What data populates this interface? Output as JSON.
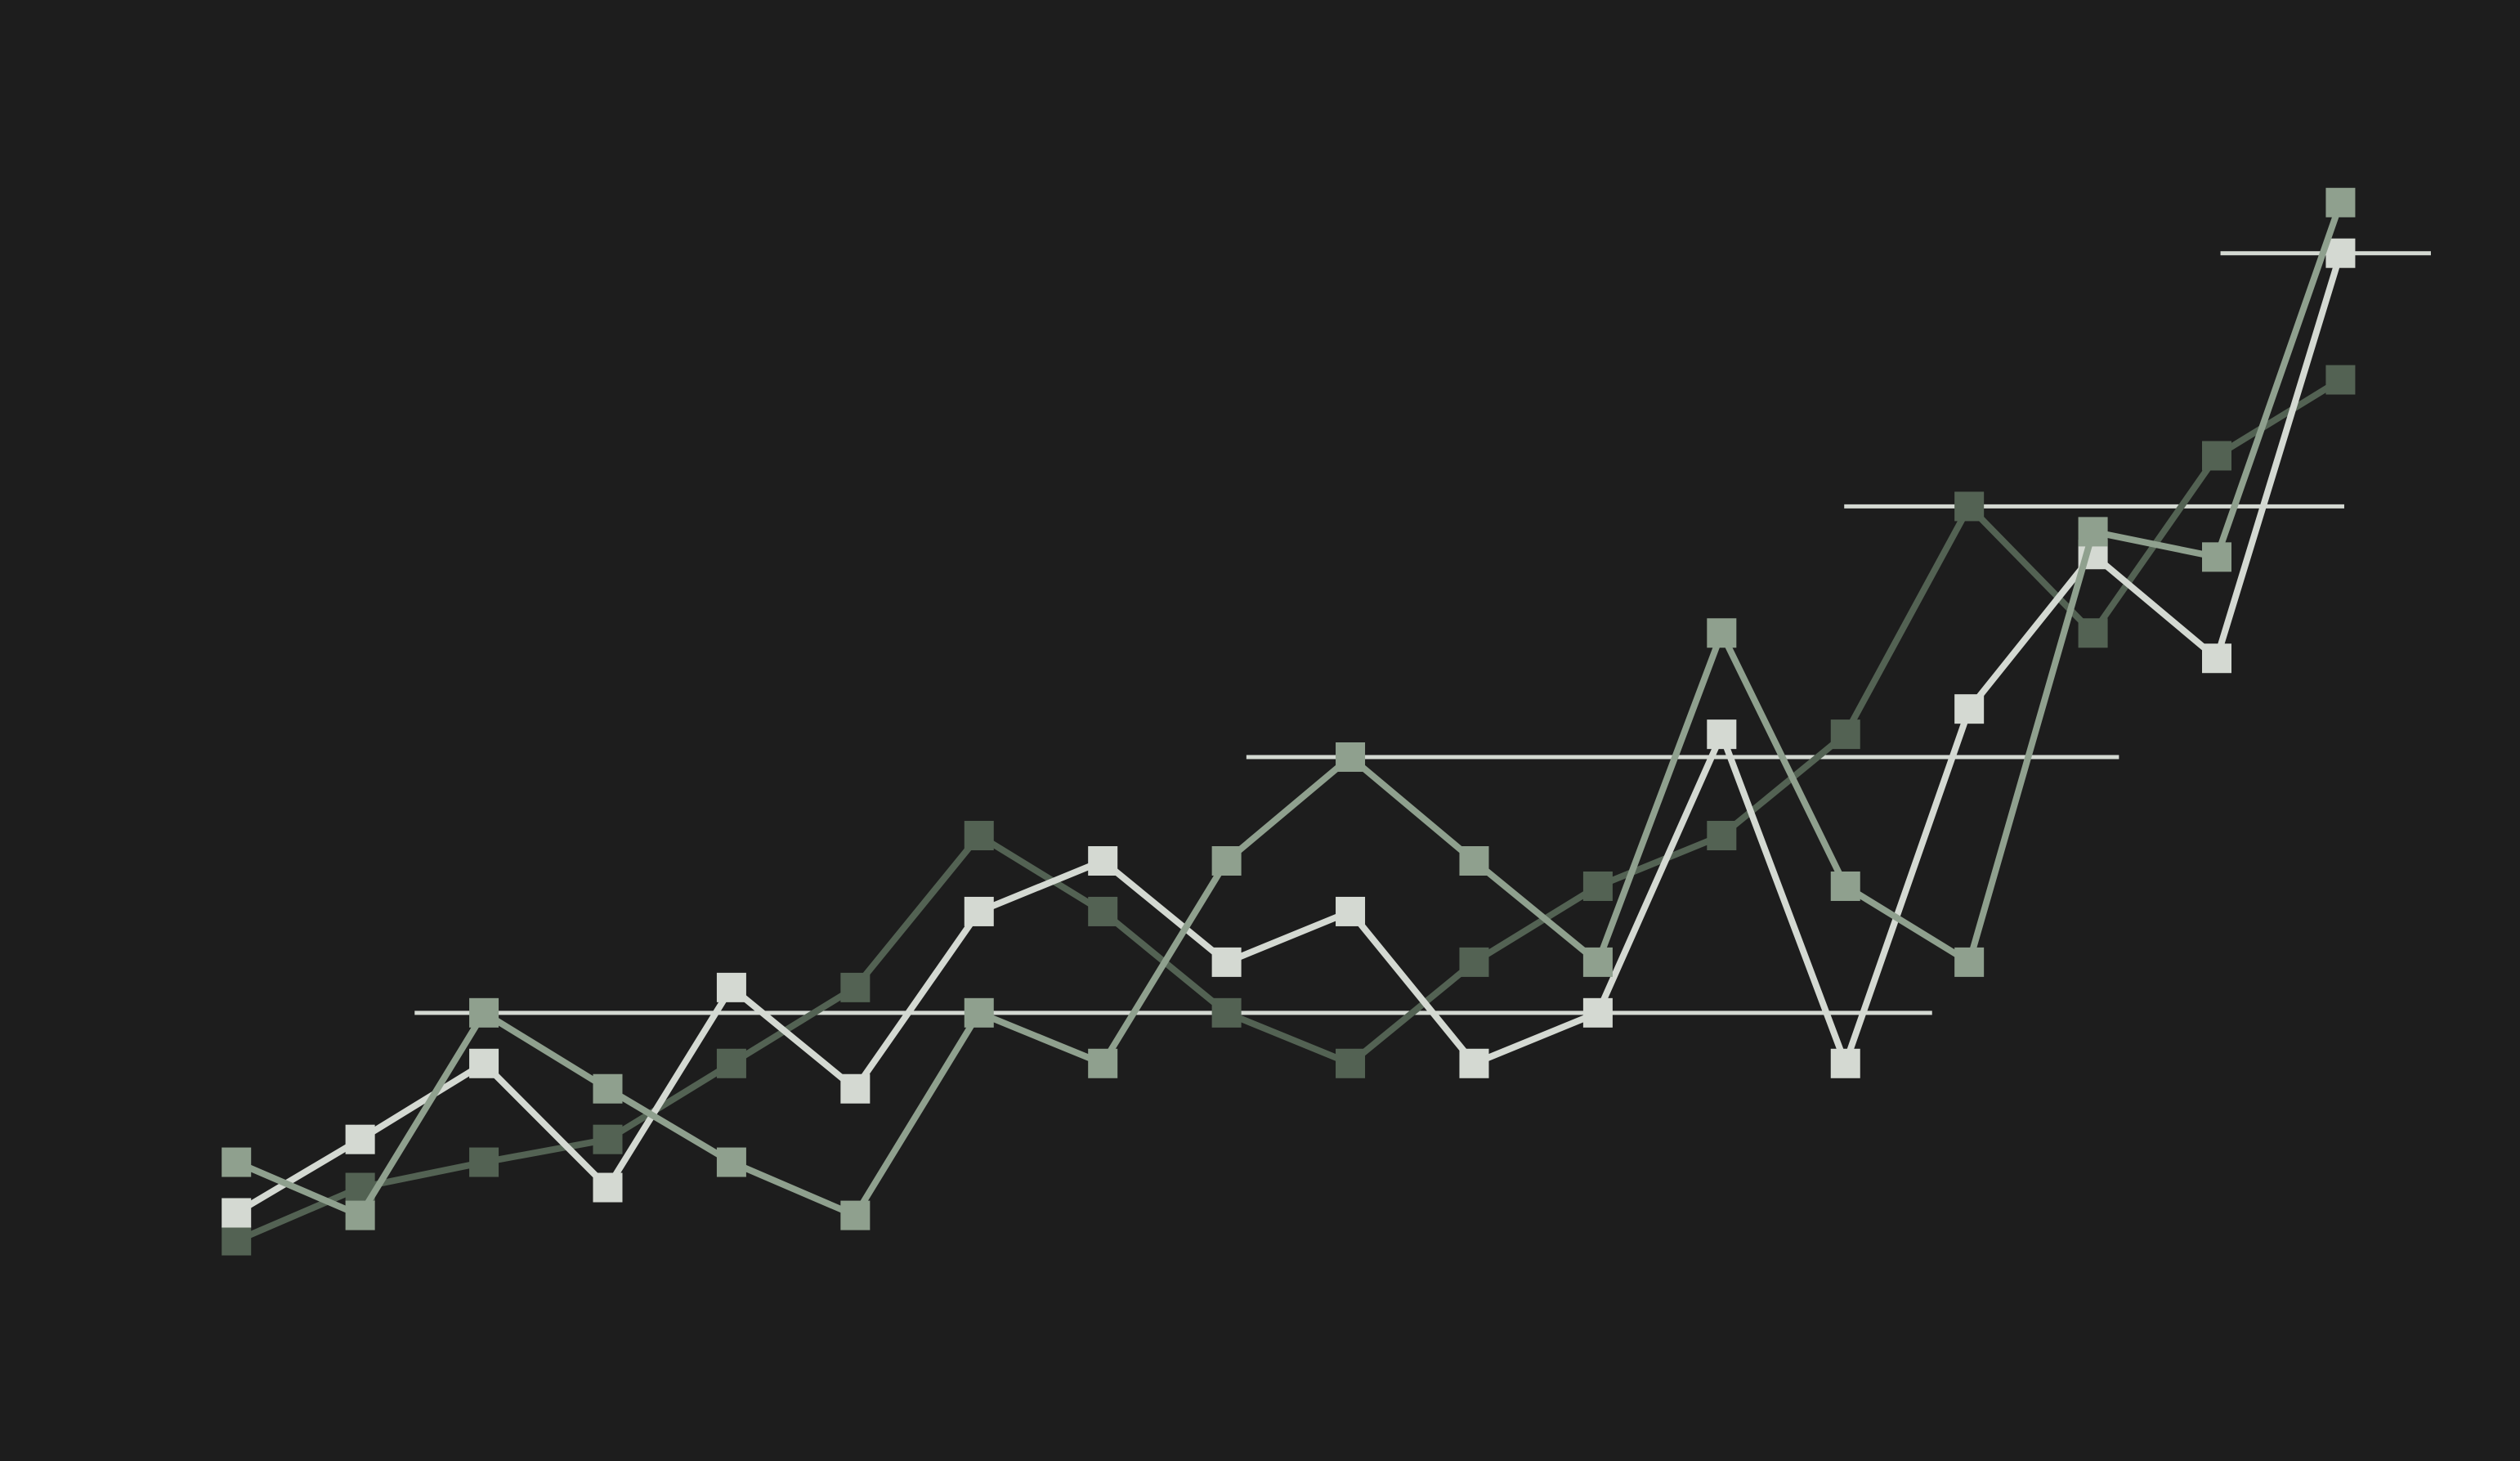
{
  "chart_data": {
    "type": "line",
    "x": [
      0,
      1,
      2,
      3,
      4,
      5,
      6,
      7,
      8,
      9,
      10,
      11,
      12,
      13,
      14,
      15,
      16,
      17
    ],
    "xlim": [
      -1.91,
      18.45
    ],
    "ylim": [
      -0.77,
      5.0
    ],
    "marker": "square",
    "series": [
      {
        "color": "#536253",
        "values": [
          0.1,
          0.31,
          0.41,
          0.5,
          0.8,
          1.1,
          1.7,
          1.4,
          1.0,
          0.8,
          1.2,
          1.5,
          1.7,
          2.1,
          3.0,
          2.5,
          3.2,
          3.5
        ]
      },
      {
        "color": "#d4d9d2",
        "values": [
          0.21,
          0.5,
          0.8,
          0.31,
          1.1,
          0.7,
          1.4,
          1.6,
          1.2,
          1.4,
          0.8,
          1.0,
          2.1,
          0.8,
          2.2,
          2.81,
          2.4,
          4.0
        ]
      },
      {
        "color": "#8fa08e",
        "values": [
          0.41,
          0.2,
          1.0,
          0.7,
          0.41,
          0.2,
          1.0,
          0.8,
          1.6,
          2.01,
          1.6,
          1.2,
          2.5,
          1.5,
          1.2,
          2.9,
          2.8,
          4.2
        ]
      }
    ],
    "reference_lines": [
      {
        "value": 1.0,
        "x": [
          1.44,
          13.7
        ],
        "color": "#d4d9d2"
      },
      {
        "value": 2.01,
        "x": [
          8.16,
          15.21
        ],
        "color": "#d4d9d2"
      },
      {
        "value": 3.0,
        "x": [
          12.99,
          17.03
        ],
        "color": "#d4d9d2"
      },
      {
        "value": 4.0,
        "x": [
          16.03,
          17.73
        ],
        "color": "#d4d9d2"
      }
    ]
  }
}
